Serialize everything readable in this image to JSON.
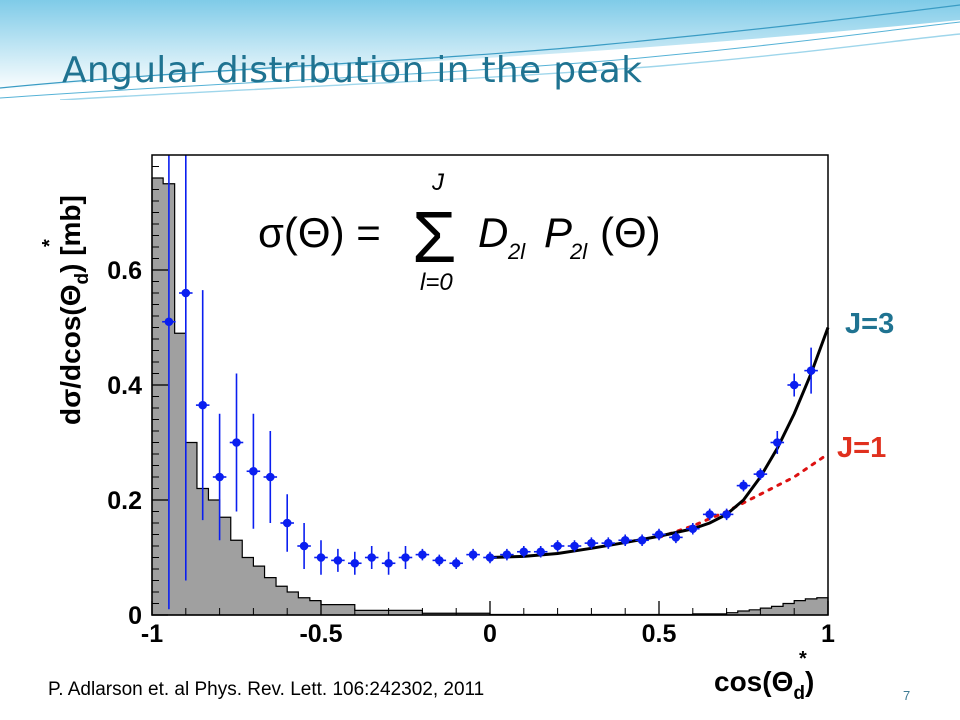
{
  "slide": {
    "title": "Angular distribution in the peak",
    "citation": "P. Adlarson et. al Phys. Rev. Lett. 106:242302, 2011",
    "page_number": "7"
  },
  "colors": {
    "title": "#1f7391",
    "points": "#0a1ef0",
    "histogram_fill": "#a0a0a0",
    "fit_j3": "#000000",
    "fit_j1": "#dd1111",
    "label_j3": "#1f7391",
    "label_j1": "#e0301e",
    "banner": "#a9dcef"
  },
  "chart_data": {
    "type": "scatter",
    "formula": "σ(Θ) = Σ_{l=0}^{J} D_{2l} P_{2l}(Θ)",
    "formula_parts": {
      "lhs": "σ(Θ) =",
      "sigma": "Σ",
      "upper": "J",
      "lower": "l=0",
      "term_d": "D",
      "sub_d": "2l",
      "term_p": "P",
      "sub_p": "2l",
      "arg": "(Θ)"
    },
    "xlabel": "cos(Θ_d^*)",
    "xlabel_parts": {
      "main": "cos(Θ",
      "sub": "d",
      "sup": "*",
      "close": ")"
    },
    "ylabel": "dσ/dcos(Θ_d^*) [mb]",
    "ylabel_parts": {
      "main": "dσ/dcos(Θ",
      "sub": "d",
      "sup": "*",
      "close": ") [mb]"
    },
    "xlim": [
      -1,
      1
    ],
    "ylim": [
      0,
      0.8
    ],
    "xticks": [
      "-1",
      "-0.5",
      "0",
      "0.5",
      "1"
    ],
    "xtick_values": [
      -1,
      -0.5,
      0,
      0.5,
      1
    ],
    "yticks": [
      "0",
      "0.2",
      "0.4",
      "0.6"
    ],
    "ytick_values": [
      0,
      0.2,
      0.4,
      0.6
    ],
    "points": {
      "x": [
        -0.95,
        -0.9,
        -0.85,
        -0.8,
        -0.75,
        -0.7,
        -0.65,
        -0.6,
        -0.55,
        -0.5,
        -0.45,
        -0.4,
        -0.35,
        -0.3,
        -0.25,
        -0.2,
        -0.15,
        -0.1,
        -0.05,
        0.0,
        0.05,
        0.1,
        0.15,
        0.2,
        0.25,
        0.3,
        0.35,
        0.4,
        0.45,
        0.5,
        0.55,
        0.6,
        0.65,
        0.7,
        0.75,
        0.8,
        0.85,
        0.9,
        0.95
      ],
      "y": [
        0.51,
        0.56,
        0.365,
        0.24,
        0.3,
        0.25,
        0.24,
        0.16,
        0.12,
        0.1,
        0.095,
        0.09,
        0.1,
        0.09,
        0.1,
        0.105,
        0.095,
        0.09,
        0.105,
        0.1,
        0.105,
        0.11,
        0.11,
        0.12,
        0.12,
        0.125,
        0.125,
        0.13,
        0.13,
        0.14,
        0.135,
        0.15,
        0.175,
        0.175,
        0.225,
        0.245,
        0.3,
        0.4,
        0.425
      ],
      "err": [
        0.5,
        0.5,
        0.2,
        0.11,
        0.12,
        0.1,
        0.08,
        0.05,
        0.04,
        0.03,
        0.02,
        0.02,
        0.02,
        0.02,
        0.02,
        0.01,
        0.01,
        0.01,
        0.01,
        0.01,
        0.01,
        0.01,
        0.01,
        0.01,
        0.01,
        0.01,
        0.01,
        0.01,
        0.01,
        0.01,
        0.01,
        0.01,
        0.01,
        0.01,
        0.01,
        0.01,
        0.02,
        0.02,
        0.04
      ]
    },
    "histogram": {
      "bin_edges": [
        -1.0,
        -0.967,
        -0.933,
        -0.9,
        -0.867,
        -0.833,
        -0.8,
        -0.767,
        -0.733,
        -0.7,
        -0.667,
        -0.633,
        -0.6,
        -0.567,
        -0.533,
        -0.5,
        -0.4,
        -0.2,
        0.0,
        0.2,
        0.4,
        0.6,
        0.7,
        0.733,
        0.767,
        0.8,
        0.833,
        0.867,
        0.9,
        0.933,
        0.967,
        1.0
      ],
      "values": [
        0.76,
        0.75,
        0.49,
        0.3,
        0.22,
        0.2,
        0.17,
        0.13,
        0.1,
        0.085,
        0.065,
        0.05,
        0.04,
        0.03,
        0.025,
        0.018,
        0.008,
        0.003,
        0.001,
        0.001,
        0.001,
        0.002,
        0.004,
        0.007,
        0.009,
        0.012,
        0.015,
        0.02,
        0.025,
        0.028,
        0.03
      ]
    },
    "fit_j3": {
      "label": "J=3",
      "x": [
        0.0,
        0.1,
        0.2,
        0.3,
        0.4,
        0.5,
        0.6,
        0.65,
        0.7,
        0.75,
        0.8,
        0.85,
        0.9,
        0.95,
        1.0
      ],
      "y": [
        0.1,
        0.102,
        0.107,
        0.116,
        0.126,
        0.137,
        0.15,
        0.16,
        0.175,
        0.2,
        0.24,
        0.29,
        0.35,
        0.42,
        0.5
      ]
    },
    "fit_j1": {
      "label": "J=1",
      "x": [
        0.5,
        0.6,
        0.7,
        0.8,
        0.9,
        1.0
      ],
      "y": [
        0.135,
        0.155,
        0.18,
        0.21,
        0.24,
        0.28
      ]
    },
    "grid": false,
    "legend": "none"
  }
}
